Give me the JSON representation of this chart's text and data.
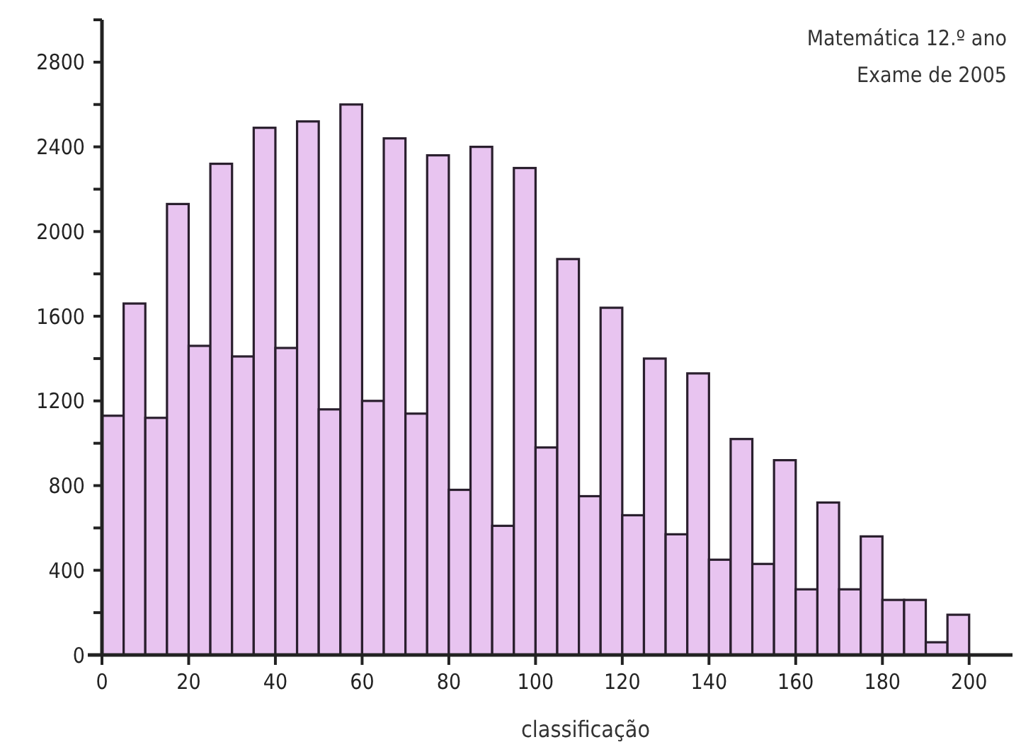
{
  "chart_data": {
    "type": "histogram",
    "title": "Matemática 12.º ano",
    "subtitle": "Exame de 2005",
    "xlabel": "classificação",
    "bins": [
      0,
      5,
      10,
      15,
      20,
      25,
      30,
      35,
      40,
      45,
      50,
      55,
      60,
      65,
      70,
      75,
      80,
      85,
      90,
      95,
      100,
      105,
      110,
      115,
      120,
      125,
      130,
      135,
      140,
      145,
      150,
      155,
      160,
      165,
      170,
      175,
      180,
      185,
      190,
      195,
      200
    ],
    "values": [
      1130,
      1660,
      1120,
      2130,
      1460,
      2320,
      1410,
      2490,
      1450,
      2520,
      1160,
      2600,
      1200,
      2440,
      1140,
      2360,
      780,
      2400,
      610,
      2300,
      980,
      1870,
      750,
      1640,
      660,
      1400,
      570,
      1330,
      450,
      1020,
      430,
      920,
      310,
      720,
      310,
      560,
      260,
      260,
      60,
      190
    ],
    "color": "#e8c4f0",
    "xlim": [
      0,
      210
    ],
    "xticks": [
      0,
      20,
      40,
      60,
      80,
      100,
      120,
      140,
      160,
      180,
      200
    ],
    "ylim": [
      0,
      3000
    ],
    "yticks": [
      0,
      {
        "value": 200,
        "label": null
      },
      400,
      {
        "value": 600,
        "label": null
      },
      800,
      {
        "value": 1000,
        "label": null
      },
      1200,
      {
        "value": 1400,
        "label": null
      },
      1600,
      {
        "value": 1800,
        "label": null
      },
      2000,
      {
        "value": 2200,
        "label": null
      },
      2400,
      {
        "value": 2600,
        "label": null
      },
      2800,
      {
        "value": 3000,
        "label": null
      }
    ],
    "grid": false
  }
}
